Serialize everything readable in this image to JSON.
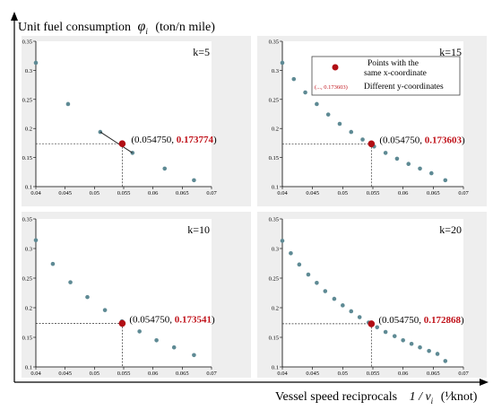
{
  "figure": {
    "ylabel": "Unit fuel consumption",
    "ylabel_symbol": "φ",
    "ylabel_sub": "i",
    "ylabel_unit": "(ton/n mile)",
    "xlabel": "Vessel speed reciprocals",
    "xlabel_symbol": "1 / v",
    "xlabel_sub": "i",
    "xlabel_unit": "(¹⁄knot)",
    "legend": {
      "item1_line1": "Points with the",
      "item1_line2": "same x-coordinate",
      "item2_symbol": "(..., 0.173603)",
      "item2_label": "Different y-coordinates"
    }
  },
  "colors": {
    "panel_bg": "#eeeeee",
    "point": "#5e8a94",
    "highlight": "#b10e14",
    "highlight_text": "#c0121a",
    "axis": "#000000"
  },
  "chart_data": [
    {
      "type": "scatter",
      "title": "k=5",
      "xlim": [
        0.04,
        0.07
      ],
      "ylim": [
        0.1,
        0.35
      ],
      "xticks": [
        "0.04",
        "0.045",
        "0.05",
        "0.055",
        "0.06",
        "0.065",
        "0.07"
      ],
      "yticks": [
        "0.1",
        "0.15",
        "0.2",
        "0.25",
        "0.3",
        "0.35"
      ],
      "x": [
        0.04,
        0.0455,
        0.051,
        0.0565,
        0.062,
        0.067
      ],
      "y": [
        0.313,
        0.242,
        0.194,
        0.158,
        0.131,
        0.111
      ],
      "highlight": {
        "x": 0.05475,
        "y": 0.173774,
        "label_x": "0.054750",
        "label_y": "0.173774"
      }
    },
    {
      "type": "scatter",
      "title": "k=15",
      "xlim": [
        0.04,
        0.07
      ],
      "ylim": [
        0.1,
        0.35
      ],
      "xticks": [
        "0.04",
        "0.045",
        "0.05",
        "0.055",
        "0.06",
        "0.065",
        "0.07"
      ],
      "yticks": [
        "0.1",
        "0.15",
        "0.2",
        "0.25",
        "0.3",
        "0.35"
      ],
      "x": [
        0.04,
        0.0419,
        0.0438,
        0.0457,
        0.0476,
        0.0495,
        0.0514,
        0.0533,
        0.0552,
        0.0571,
        0.059,
        0.0609,
        0.0628,
        0.0647,
        0.067
      ],
      "y": [
        0.313,
        0.285,
        0.262,
        0.242,
        0.224,
        0.208,
        0.194,
        0.181,
        0.169,
        0.158,
        0.148,
        0.139,
        0.131,
        0.123,
        0.111
      ],
      "highlight": {
        "x": 0.05475,
        "y": 0.173603,
        "label_x": "0.054750",
        "label_y": "0.173603"
      }
    },
    {
      "type": "scatter",
      "title": "k=10",
      "xlim": [
        0.04,
        0.07
      ],
      "ylim": [
        0.1,
        0.35
      ],
      "xticks": [
        "0.04",
        "0.045",
        "0.05",
        "0.055",
        "0.06",
        "0.065",
        "0.07"
      ],
      "yticks": [
        "0.1",
        "0.15",
        "0.2",
        "0.25",
        "0.3",
        "0.35"
      ],
      "x": [
        0.04,
        0.0429,
        0.0459,
        0.0488,
        0.0518,
        0.0547,
        0.0577,
        0.0606,
        0.0636,
        0.067
      ],
      "y": [
        0.314,
        0.274,
        0.243,
        0.218,
        0.196,
        0.177,
        0.16,
        0.145,
        0.133,
        0.12
      ],
      "highlight": {
        "x": 0.05475,
        "y": 0.173541,
        "label_x": "0.054750",
        "label_y": "0.173541"
      }
    },
    {
      "type": "scatter",
      "title": "k=20",
      "xlim": [
        0.04,
        0.07
      ],
      "ylim": [
        0.1,
        0.35
      ],
      "xticks": [
        "0.04",
        "0.045",
        "0.05",
        "0.055",
        "0.06",
        "0.065",
        "0.07"
      ],
      "yticks": [
        "0.1",
        "0.15",
        "0.2",
        "0.25",
        "0.3",
        "0.35"
      ],
      "x": [
        0.04,
        0.0414,
        0.0428,
        0.0443,
        0.0457,
        0.0471,
        0.0486,
        0.05,
        0.0514,
        0.0528,
        0.0543,
        0.0557,
        0.0571,
        0.0586,
        0.06,
        0.0614,
        0.0628,
        0.0643,
        0.0657,
        0.067
      ],
      "y": [
        0.313,
        0.292,
        0.273,
        0.256,
        0.242,
        0.228,
        0.215,
        0.204,
        0.194,
        0.184,
        0.175,
        0.167,
        0.159,
        0.152,
        0.145,
        0.139,
        0.133,
        0.127,
        0.122,
        0.11
      ],
      "highlight": {
        "x": 0.05475,
        "y": 0.172868,
        "label_x": "0.054750",
        "label_y": "0.172868"
      }
    }
  ]
}
